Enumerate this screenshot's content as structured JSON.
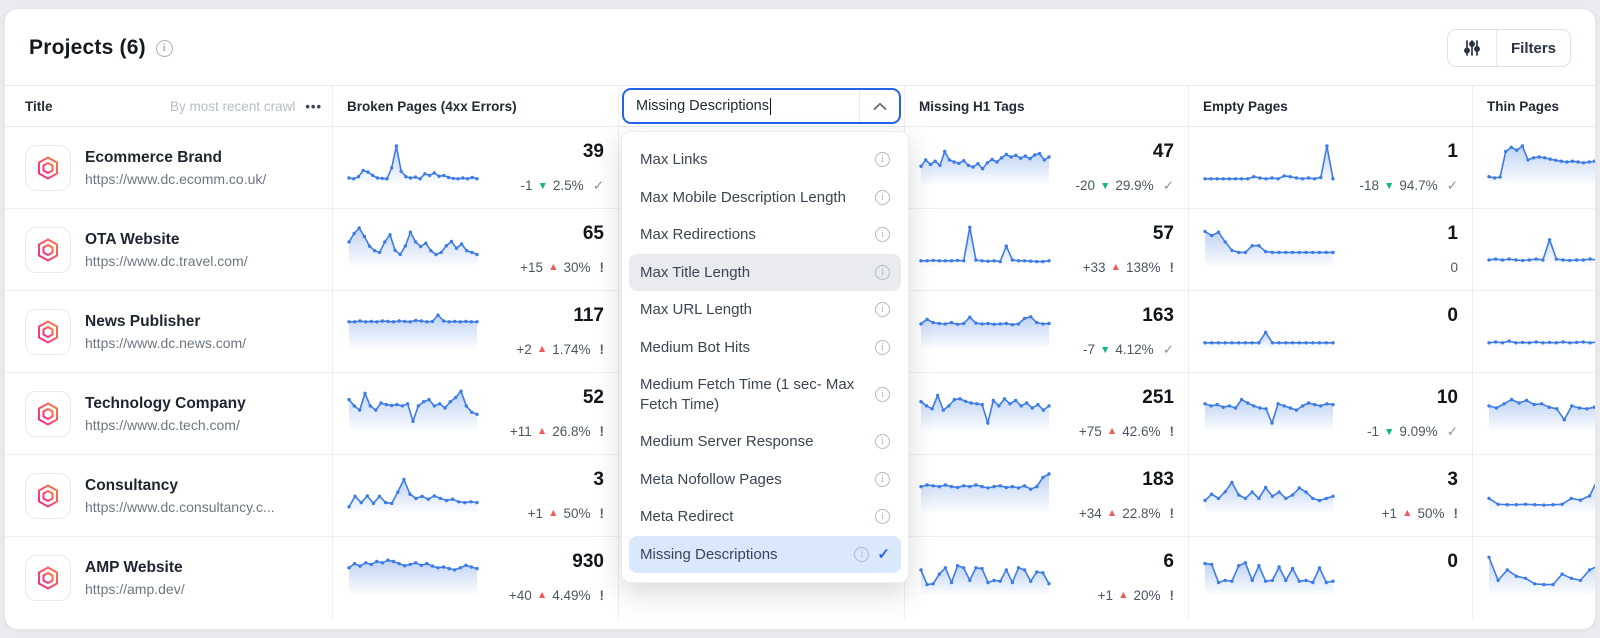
{
  "header": {
    "title": "Projects (6)",
    "filters_label": "Filters"
  },
  "table": {
    "columns": {
      "title": "Title",
      "sort": "By most recent crawl",
      "menu": "•••",
      "broken": "Broken Pages (4xx Errors)",
      "h1": "Missing H1 Tags",
      "empty": "Empty Pages",
      "thin": "Thin Pages"
    },
    "rows": [
      {
        "name": "Ecommerce Brand",
        "url": "https://www.dc.ecomm.co.uk/",
        "broken": {
          "value": "39",
          "delta": "-1",
          "dir": "down",
          "pct": "2.5%",
          "status": "check",
          "spark": [
            12,
            10,
            15,
            30,
            26,
            18,
            12,
            11,
            10,
            36,
            88,
            28,
            15,
            12,
            14,
            10,
            22,
            18,
            24,
            16,
            18,
            13,
            11,
            10,
            12,
            10,
            13,
            10
          ]
        },
        "h1": {
          "value": "47",
          "delta": "-20",
          "dir": "down",
          "pct": "29.9%",
          "status": "check",
          "spark": [
            40,
            55,
            44,
            52,
            42,
            75,
            55,
            50,
            47,
            53,
            42,
            38,
            46,
            34,
            48,
            56,
            50,
            60,
            68,
            62,
            66,
            59,
            64,
            58,
            67,
            70,
            55,
            62
          ]
        },
        "empty": {
          "value": "1",
          "delta": "-18",
          "dir": "down",
          "pct": "94.7%",
          "status": "check",
          "spark": [
            10,
            10,
            10,
            10,
            10,
            10,
            10,
            10,
            15,
            12,
            10,
            12,
            10,
            17,
            15,
            12,
            10,
            12,
            10,
            13,
            88,
            10
          ]
        },
        "thin": {
          "spark": [
            15,
            12,
            14,
            75,
            85,
            78,
            88,
            55,
            60,
            62,
            60,
            57,
            54,
            52,
            50,
            52,
            50,
            48,
            50,
            52,
            50,
            48,
            50,
            53
          ]
        }
      },
      {
        "name": "OTA Website",
        "url": "https://www.dc.travel.com/",
        "broken": {
          "value": "65",
          "delta": "+15",
          "dir": "up",
          "pct": "30%",
          "status": "warn",
          "spark": [
            55,
            75,
            88,
            68,
            45,
            34,
            30,
            55,
            72,
            35,
            25,
            45,
            78,
            55,
            44,
            52,
            34,
            25,
            30,
            46,
            56,
            40,
            50,
            34,
            30,
            25
          ]
        },
        "h1": {
          "value": "57",
          "delta": "+33",
          "dir": "up",
          "pct": "138%",
          "status": "warn",
          "spark": [
            10,
            10,
            11,
            10,
            10,
            10,
            11,
            10,
            90,
            12,
            10,
            9,
            10,
            8,
            45,
            12,
            10,
            10,
            9,
            8,
            8,
            10
          ]
        },
        "empty": {
          "value": "1",
          "delta": "0",
          "spark": [
            80,
            70,
            78,
            55,
            35,
            30,
            30,
            46,
            46,
            32,
            30,
            30,
            30,
            30,
            30,
            30,
            30,
            30,
            30,
            30
          ]
        },
        "thin": {
          "spark": [
            12,
            14,
            12,
            14,
            12,
            11,
            12,
            14,
            12,
            60,
            14,
            12,
            11,
            12,
            12,
            14,
            12,
            90,
            55,
            50
          ]
        }
      },
      {
        "name": "News Publisher",
        "url": "https://www.dc.news.com/",
        "broken": {
          "value": "117",
          "delta": "+2",
          "dir": "up",
          "pct": "1.74%",
          "status": "warn",
          "spark": [
            60,
            60,
            62,
            60,
            61,
            60,
            62,
            61,
            60,
            62,
            61,
            60,
            63,
            62,
            60,
            61,
            76,
            62,
            60,
            61,
            60,
            61,
            60,
            60
          ]
        },
        "h1": {
          "value": "163",
          "delta": "-7",
          "dir": "down",
          "pct": "4.12%",
          "status": "check",
          "spark": [
            55,
            66,
            58,
            56,
            55,
            58,
            54,
            56,
            71,
            57,
            55,
            56,
            54,
            55,
            56,
            53,
            55,
            68,
            72,
            58,
            55,
            56
          ]
        },
        "empty": {
          "value": "0",
          "spark": [
            10,
            10,
            10,
            10,
            10,
            10,
            10,
            10,
            10,
            35,
            10,
            10,
            10,
            10,
            10,
            10,
            10,
            10,
            10,
            10
          ]
        },
        "thin": {
          "spark": [
            10,
            12,
            10,
            14,
            10,
            11,
            10,
            12,
            10,
            11,
            10,
            12,
            10,
            11,
            12,
            10,
            12,
            24,
            60,
            88
          ]
        }
      },
      {
        "name": "Technology Company",
        "url": "https://www.dc.tech.com/",
        "broken": {
          "value": "52",
          "delta": "+11",
          "dir": "up",
          "pct": "26.8%",
          "status": "warn",
          "spark": [
            70,
            55,
            45,
            85,
            55,
            45,
            62,
            58,
            56,
            58,
            55,
            60,
            18,
            55,
            65,
            70,
            55,
            60,
            50,
            65,
            75,
            90,
            55,
            40,
            35
          ]
        },
        "h1": {
          "value": "251",
          "delta": "+75",
          "dir": "up",
          "pct": "42.6%",
          "status": "warn",
          "spark": [
            65,
            55,
            48,
            80,
            45,
            55,
            70,
            72,
            66,
            62,
            60,
            58,
            14,
            68,
            55,
            72,
            60,
            68,
            55,
            62,
            50,
            58,
            45,
            55
          ]
        },
        "empty": {
          "value": "10",
          "delta": "-1",
          "dir": "down",
          "pct": "9.09%",
          "status": "check",
          "spark": [
            60,
            55,
            58,
            52,
            55,
            50,
            70,
            62,
            55,
            50,
            48,
            14,
            60,
            55,
            50,
            45,
            55,
            62,
            58,
            55,
            60,
            58
          ]
        },
        "thin": {
          "spark": [
            55,
            50,
            60,
            70,
            62,
            68,
            58,
            60,
            52,
            48,
            22,
            55,
            50,
            48,
            52,
            55,
            50,
            45
          ]
        }
      },
      {
        "name": "Consultancy",
        "url": "https://www.dc.consultancy.c...",
        "broken": {
          "value": "3",
          "delta": "+1",
          "dir": "up",
          "pct": "50%",
          "status": "warn",
          "spark": [
            10,
            35,
            20,
            36,
            18,
            35,
            20,
            18,
            45,
            75,
            40,
            30,
            35,
            28,
            36,
            30,
            25,
            28,
            22,
            20,
            22,
            20
          ]
        },
        "h1": {
          "value": "183",
          "delta": "+34",
          "dir": "up",
          "pct": "22.8%",
          "status": "warn",
          "spark": [
            58,
            62,
            60,
            58,
            62,
            58,
            56,
            60,
            58,
            62,
            58,
            55,
            58,
            60,
            56,
            58,
            55,
            60,
            52,
            58,
            80,
            88
          ]
        },
        "empty": {
          "value": "3",
          "delta": "+1",
          "dir": "up",
          "pct": "50%",
          "status": "warn",
          "spark": [
            25,
            40,
            30,
            46,
            68,
            38,
            30,
            45,
            30,
            56,
            35,
            45,
            30,
            38,
            55,
            45,
            30,
            25,
            30,
            35
          ]
        },
        "thin": {
          "spark": [
            30,
            16,
            15,
            15,
            16,
            15,
            14,
            15,
            16,
            30,
            26,
            36,
            80,
            55,
            35
          ]
        }
      },
      {
        "name": "AMP Website",
        "url": "https://amp.dev/",
        "broken": {
          "value": "930",
          "delta": "+40",
          "dir": "up",
          "pct": "4.49%",
          "status": "warn",
          "spark": [
            60,
            70,
            64,
            72,
            68,
            75,
            72,
            78,
            75,
            70,
            65,
            68,
            72,
            66,
            70,
            64,
            60,
            62,
            58,
            55,
            60,
            66,
            62,
            58
          ]
        },
        "h1": {
          "value": "6",
          "delta": "+1",
          "dir": "up",
          "pct": "20%",
          "status": "warn",
          "spark": [
            55,
            20,
            22,
            45,
            60,
            25,
            65,
            60,
            30,
            60,
            58,
            25,
            30,
            28,
            55,
            25,
            60,
            55,
            28,
            50,
            48,
            22
          ]
        },
        "empty": {
          "value": "0",
          "spark": [
            70,
            68,
            25,
            30,
            28,
            65,
            72,
            30,
            65,
            28,
            30,
            62,
            30,
            58,
            28,
            30,
            25,
            60,
            25,
            28
          ]
        },
        "thin": {
          "spark": [
            85,
            30,
            55,
            40,
            35,
            22,
            20,
            20,
            45,
            35,
            30,
            55,
            65,
            30,
            25
          ]
        }
      }
    ]
  },
  "dropdown": {
    "value": "Missing Descriptions",
    "items": [
      {
        "label": "Max Links",
        "state": "normal"
      },
      {
        "label": "Max Mobile Description Length",
        "state": "normal"
      },
      {
        "label": "Max Redirections",
        "state": "normal"
      },
      {
        "label": "Max Title Length",
        "state": "hover"
      },
      {
        "label": "Max URL Length",
        "state": "normal"
      },
      {
        "label": "Medium Bot Hits",
        "state": "normal"
      },
      {
        "label": "Medium Fetch Time (1 sec- Max Fetch Time)",
        "state": "normal"
      },
      {
        "label": "Medium Server Response",
        "state": "normal"
      },
      {
        "label": "Meta Nofollow Pages",
        "state": "normal"
      },
      {
        "label": "Meta Redirect",
        "state": "normal"
      },
      {
        "label": "Missing Descriptions",
        "state": "selected"
      }
    ]
  },
  "colors": {
    "accent": "#2563eb",
    "spark_line": "#3d7ce6",
    "spark_fill": "#7fa8e8",
    "delta_up": "#ef5b5b",
    "delta_down": "#13b584",
    "selected_bg": "#d9e8fc",
    "hover_bg": "#e9ebef"
  }
}
